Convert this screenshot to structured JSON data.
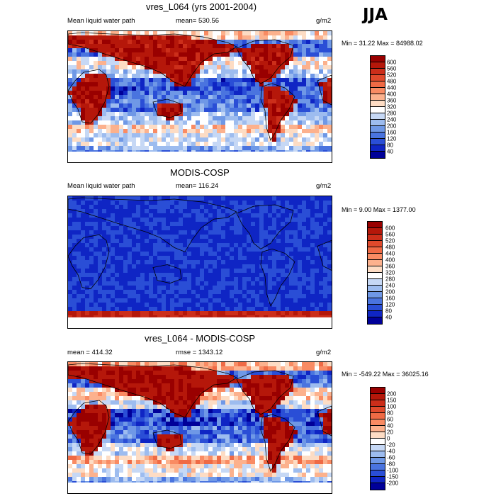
{
  "season": "JJA",
  "panels": [
    {
      "title": "vres_L064 (yrs 2001-2004)",
      "left_label": "Mean liquid water path",
      "center_label": "mean= 530.56",
      "units": "g/m2",
      "minmax": "Min =  31.22 Max = 84988.02",
      "scale": "abs",
      "colorbar": {
        "labels": [
          "600",
          "560",
          "520",
          "480",
          "440",
          "400",
          "360",
          "320",
          "280",
          "240",
          "200",
          "160",
          "120",
          "80",
          "40"
        ],
        "colors": [
          "#990000",
          "#b5170a",
          "#cc2e1a",
          "#e04a2c",
          "#ef6a45",
          "#f98b63",
          "#fcb18d",
          "#fddcc4",
          "#ffffff",
          "#c6d8f5",
          "#9dbcef",
          "#6f98e6",
          "#4a74df",
          "#2a4ed6",
          "#0f25c4",
          "#000099"
        ]
      },
      "field": "model"
    },
    {
      "title": "MODIS-COSP",
      "left_label": "Mean liquid water path",
      "center_label": "mean= 116.24",
      "units": "g/m2",
      "minmax": "Min =   9.00 Max = 1377.00",
      "scale": "abs",
      "colorbar": {
        "labels": [
          "600",
          "560",
          "520",
          "480",
          "440",
          "400",
          "360",
          "320",
          "280",
          "240",
          "200",
          "160",
          "120",
          "80",
          "40"
        ],
        "colors": [
          "#990000",
          "#b5170a",
          "#cc2e1a",
          "#e04a2c",
          "#ef6a45",
          "#f98b63",
          "#fcb18d",
          "#fddcc4",
          "#ffffff",
          "#c6d8f5",
          "#9dbcef",
          "#6f98e6",
          "#4a74df",
          "#2a4ed6",
          "#0f25c4",
          "#000099"
        ]
      },
      "field": "obs"
    },
    {
      "title": "vres_L064 - MODIS-COSP",
      "left_label": "mean = 414.32",
      "center_label": "rmse = 1343.12",
      "units": "g/m2",
      "minmax": "Min = -549.22 Max = 36025.16",
      "scale": "diff",
      "colorbar": {
        "labels": [
          "200",
          "150",
          "100",
          "80",
          "60",
          "40",
          "20",
          "0",
          "-20",
          "-40",
          "-60",
          "-80",
          "-100",
          "-150",
          "-200"
        ],
        "colors": [
          "#990000",
          "#b5170a",
          "#cc2e1a",
          "#e04a2c",
          "#ef6a45",
          "#f98b63",
          "#fcb18d",
          "#fddcc4",
          "#ffffff",
          "#c6d8f5",
          "#9dbcef",
          "#6f98e6",
          "#4a74df",
          "#2a4ed6",
          "#0f25c4",
          "#000099"
        ]
      },
      "field": "diff"
    }
  ]
}
